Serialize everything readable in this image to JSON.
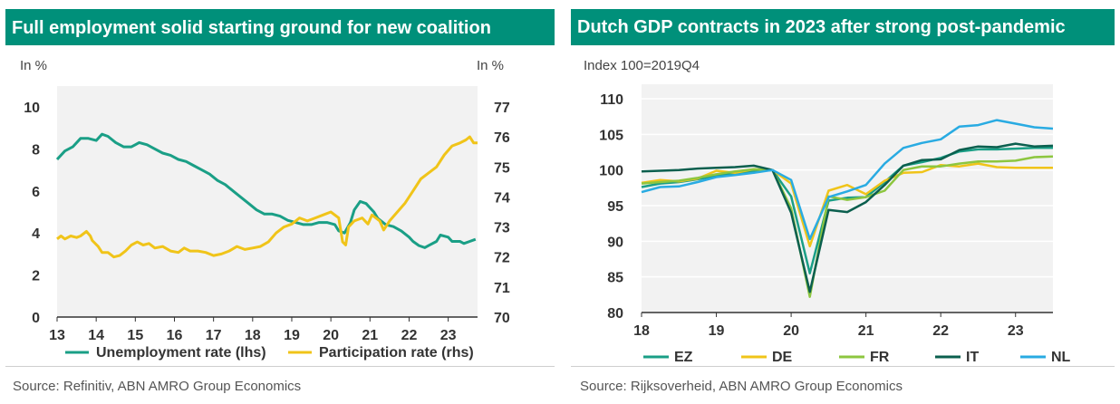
{
  "left_panel": {
    "title": "Full employment solid starting ground for new coalition",
    "unit_left": "In %",
    "unit_right": "In %",
    "source": "Source: Refinitiv, ABN AMRO Group Economics"
  },
  "right_panel": {
    "title": "Dutch GDP contracts in 2023 after strong post-pandemic",
    "unit": "Index 100=2019Q4",
    "source": "Source: Rijksoverheid, ABN AMRO Group Economics"
  },
  "colors": {
    "brand": "#00907a",
    "unemployment": "#1a9f86",
    "participation": "#f0c419",
    "EZ": "#1a9f86",
    "DE": "#f0c419",
    "FR": "#8dc63f",
    "IT": "#0b5f4e",
    "NL": "#29abe2"
  },
  "chart_data": [
    {
      "type": "line",
      "title": "Full employment solid starting ground for new coalition",
      "ylabel": "In %",
      "y2label": "In %",
      "ylim": [
        0,
        10
      ],
      "y2lim": [
        70,
        77
      ],
      "yticks": [
        0,
        2,
        4,
        6,
        8,
        10
      ],
      "y2ticks": [
        70,
        71,
        72,
        73,
        74,
        75,
        76,
        77
      ],
      "xlim": [
        13,
        23.75
      ],
      "xticks": [
        13,
        14,
        15,
        16,
        17,
        18,
        19,
        20,
        21,
        22,
        23
      ],
      "xtick_labels": [
        "13",
        "14",
        "15",
        "16",
        "17",
        "18",
        "19",
        "20",
        "21",
        "22",
        "23"
      ],
      "grid": false,
      "legend": "bottom",
      "series": [
        {
          "name": "Unemployment rate (lhs)",
          "axis": "left",
          "color": "#1a9f86",
          "points": [
            [
              13.0,
              7.5
            ],
            [
              13.2,
              7.9
            ],
            [
              13.4,
              8.1
            ],
            [
              13.6,
              8.5
            ],
            [
              13.8,
              8.5
            ],
            [
              14.0,
              8.4
            ],
            [
              14.15,
              8.7
            ],
            [
              14.3,
              8.6
            ],
            [
              14.5,
              8.3
            ],
            [
              14.7,
              8.1
            ],
            [
              14.9,
              8.1
            ],
            [
              15.0,
              8.2
            ],
            [
              15.1,
              8.3
            ],
            [
              15.3,
              8.2
            ],
            [
              15.5,
              8.0
            ],
            [
              15.7,
              7.8
            ],
            [
              15.9,
              7.7
            ],
            [
              16.1,
              7.5
            ],
            [
              16.3,
              7.4
            ],
            [
              16.5,
              7.2
            ],
            [
              16.7,
              7.0
            ],
            [
              16.9,
              6.8
            ],
            [
              17.1,
              6.5
            ],
            [
              17.3,
              6.3
            ],
            [
              17.5,
              6.0
            ],
            [
              17.7,
              5.7
            ],
            [
              17.9,
              5.4
            ],
            [
              18.1,
              5.1
            ],
            [
              18.3,
              4.9
            ],
            [
              18.5,
              4.9
            ],
            [
              18.7,
              4.8
            ],
            [
              18.9,
              4.6
            ],
            [
              19.1,
              4.5
            ],
            [
              19.3,
              4.4
            ],
            [
              19.5,
              4.4
            ],
            [
              19.7,
              4.5
            ],
            [
              19.9,
              4.5
            ],
            [
              20.1,
              4.4
            ],
            [
              20.2,
              4.1
            ],
            [
              20.35,
              4.0
            ],
            [
              20.5,
              4.5
            ],
            [
              20.6,
              5.1
            ],
            [
              20.75,
              5.5
            ],
            [
              20.9,
              5.4
            ],
            [
              21.0,
              5.2
            ],
            [
              21.1,
              5.0
            ],
            [
              21.2,
              4.7
            ],
            [
              21.4,
              4.4
            ],
            [
              21.6,
              4.3
            ],
            [
              21.8,
              4.1
            ],
            [
              22.0,
              3.8
            ],
            [
              22.1,
              3.6
            ],
            [
              22.25,
              3.4
            ],
            [
              22.4,
              3.3
            ],
            [
              22.5,
              3.4
            ],
            [
              22.7,
              3.6
            ],
            [
              22.8,
              3.9
            ],
            [
              23.0,
              3.8
            ],
            [
              23.1,
              3.6
            ],
            [
              23.3,
              3.6
            ],
            [
              23.4,
              3.5
            ],
            [
              23.55,
              3.6
            ],
            [
              23.7,
              3.7
            ]
          ]
        },
        {
          "name": "Participation rate (rhs)",
          "axis": "right",
          "color": "#f0c419",
          "points": [
            [
              13.0,
              72.6
            ],
            [
              13.1,
              72.7
            ],
            [
              13.2,
              72.6
            ],
            [
              13.35,
              72.7
            ],
            [
              13.5,
              72.65
            ],
            [
              13.6,
              72.7
            ],
            [
              13.75,
              72.85
            ],
            [
              13.85,
              72.7
            ],
            [
              13.9,
              72.55
            ],
            [
              14.05,
              72.35
            ],
            [
              14.15,
              72.15
            ],
            [
              14.3,
              72.15
            ],
            [
              14.45,
              72.0
            ],
            [
              14.6,
              72.05
            ],
            [
              14.75,
              72.2
            ],
            [
              14.9,
              72.4
            ],
            [
              15.05,
              72.5
            ],
            [
              15.2,
              72.4
            ],
            [
              15.35,
              72.45
            ],
            [
              15.5,
              72.3
            ],
            [
              15.7,
              72.35
            ],
            [
              15.9,
              72.2
            ],
            [
              16.1,
              72.15
            ],
            [
              16.25,
              72.3
            ],
            [
              16.4,
              72.2
            ],
            [
              16.6,
              72.2
            ],
            [
              16.8,
              72.15
            ],
            [
              17.0,
              72.05
            ],
            [
              17.2,
              72.1
            ],
            [
              17.4,
              72.2
            ],
            [
              17.6,
              72.35
            ],
            [
              17.8,
              72.25
            ],
            [
              18.0,
              72.3
            ],
            [
              18.2,
              72.35
            ],
            [
              18.4,
              72.5
            ],
            [
              18.6,
              72.8
            ],
            [
              18.8,
              73.0
            ],
            [
              19.0,
              73.1
            ],
            [
              19.2,
              73.3
            ],
            [
              19.4,
              73.2
            ],
            [
              19.6,
              73.3
            ],
            [
              19.8,
              73.4
            ],
            [
              20.0,
              73.5
            ],
            [
              20.2,
              73.3
            ],
            [
              20.3,
              72.5
            ],
            [
              20.38,
              72.4
            ],
            [
              20.45,
              73.0
            ],
            [
              20.6,
              73.2
            ],
            [
              20.8,
              73.3
            ],
            [
              20.95,
              73.1
            ],
            [
              21.05,
              73.4
            ],
            [
              21.25,
              73.2
            ],
            [
              21.35,
              72.9
            ],
            [
              21.5,
              73.2
            ],
            [
              21.7,
              73.5
            ],
            [
              21.9,
              73.8
            ],
            [
              22.1,
              74.2
            ],
            [
              22.3,
              74.6
            ],
            [
              22.5,
              74.8
            ],
            [
              22.7,
              75.0
            ],
            [
              22.9,
              75.4
            ],
            [
              23.1,
              75.7
            ],
            [
              23.3,
              75.8
            ],
            [
              23.45,
              75.9
            ],
            [
              23.55,
              76.0
            ],
            [
              23.65,
              75.8
            ],
            [
              23.75,
              75.8
            ]
          ]
        }
      ]
    },
    {
      "type": "line",
      "title": "Dutch GDP contracts in 2023 after strong post-pandemic",
      "ylabel": "Index 100=2019Q4",
      "ylim": [
        80,
        110
      ],
      "yticks": [
        80,
        85,
        90,
        95,
        100,
        105,
        110
      ],
      "xlim": [
        18,
        23.5
      ],
      "xticks": [
        18,
        19,
        20,
        21,
        22,
        23
      ],
      "xtick_labels": [
        "18",
        "19",
        "20",
        "21",
        "22",
        "23"
      ],
      "grid": true,
      "legend": "bottom",
      "x": [
        18.0,
        18.25,
        18.5,
        18.75,
        19.0,
        19.25,
        19.5,
        19.75,
        20.0,
        20.25,
        20.5,
        20.75,
        21.0,
        21.25,
        21.5,
        21.75,
        22.0,
        22.25,
        22.5,
        22.75,
        23.0,
        23.25,
        23.5
      ],
      "series": [
        {
          "name": "EZ",
          "color": "#1a9f86",
          "values": [
            97.6,
            98.1,
            98.3,
            98.7,
            99.2,
            99.5,
            99.8,
            100.0,
            96.3,
            85.5,
            95.7,
            96.1,
            96.2,
            98.3,
            100.6,
            101.1,
            101.7,
            102.6,
            102.9,
            102.9,
            103.0,
            103.1,
            103.1
          ]
        },
        {
          "name": "DE",
          "color": "#f0c419",
          "values": [
            98.2,
            98.6,
            98.4,
            98.8,
            99.9,
            99.6,
            100.1,
            100.0,
            98.1,
            89.3,
            97.1,
            97.9,
            96.6,
            98.5,
            99.6,
            99.7,
            100.7,
            100.5,
            100.9,
            100.4,
            100.3,
            100.3,
            100.3
          ]
        },
        {
          "name": "FR",
          "color": "#8dc63f",
          "values": [
            98.1,
            98.3,
            98.5,
            98.9,
            99.4,
            99.8,
            100.1,
            100.0,
            94.6,
            82.2,
            96.3,
            95.8,
            96.2,
            97.1,
            100.0,
            100.5,
            100.5,
            100.9,
            101.2,
            101.2,
            101.3,
            101.8,
            101.9
          ]
        },
        {
          "name": "IT",
          "color": "#0b5f4e",
          "values": [
            99.8,
            99.9,
            100.0,
            100.2,
            100.3,
            100.4,
            100.6,
            100.0,
            94.0,
            82.9,
            94.4,
            94.1,
            95.5,
            97.9,
            100.6,
            101.4,
            101.5,
            102.8,
            103.3,
            103.2,
            103.7,
            103.3,
            103.4
          ]
        },
        {
          "name": "NL",
          "color": "#29abe2",
          "values": [
            96.9,
            97.6,
            97.7,
            98.3,
            99.0,
            99.3,
            99.6,
            100.0,
            98.6,
            90.3,
            96.2,
            97.0,
            97.9,
            100.9,
            103.1,
            103.8,
            104.3,
            106.1,
            106.3,
            107.0,
            106.5,
            106.0,
            105.8
          ]
        }
      ]
    }
  ]
}
